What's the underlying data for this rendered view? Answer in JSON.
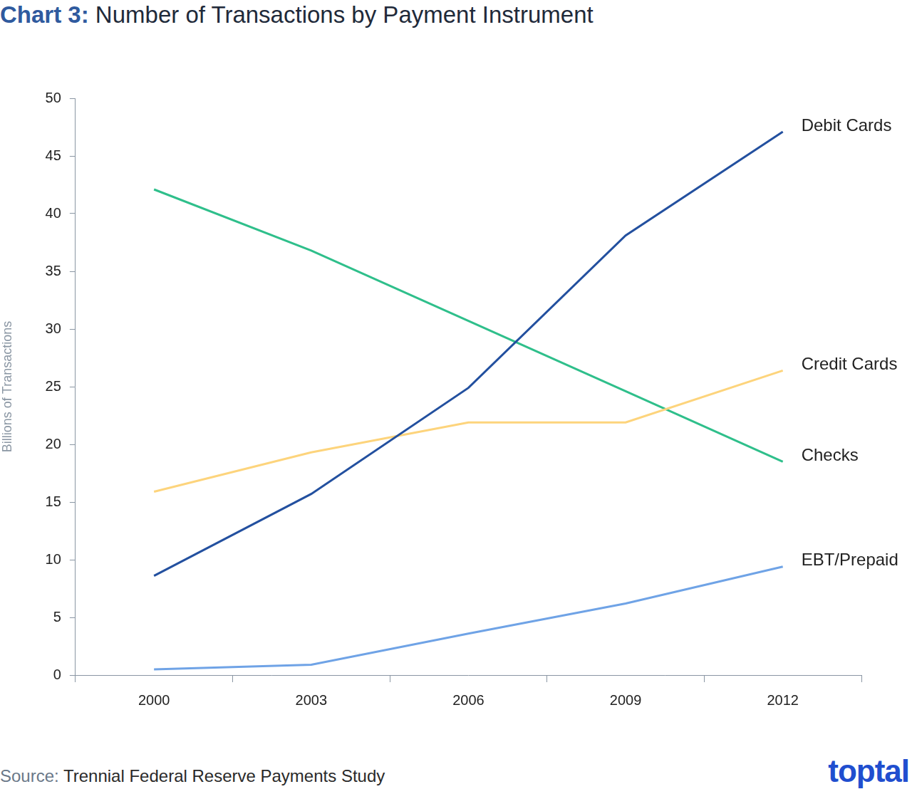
{
  "chart_data": {
    "type": "line",
    "title": "Chart 3: Number of Transactions by Payment Instrument",
    "y_label": "Billions of Transactions",
    "annotations": [
      "Source: Trennial Federal Reserve Payments Study",
      "toptal"
    ],
    "categories": [
      "2000",
      "2003",
      "2006",
      "2009",
      "2012"
    ],
    "series": [
      {
        "name": "Debit Cards",
        "color": "#23509f",
        "values": [
          8.6,
          15.7,
          24.9,
          38.1,
          47.1
        ]
      },
      {
        "name": "Credit Cards",
        "color": "#fdd47c",
        "values": [
          15.9,
          19.3,
          21.9,
          21.9,
          26.4
        ]
      },
      {
        "name": "Checks",
        "color": "#2fbf8b",
        "values": [
          42.1,
          36.8,
          30.7,
          24.6,
          18.5
        ]
      },
      {
        "name": "EBT/Prepaid",
        "color": "#6fa3e6",
        "values": [
          0.5,
          0.9,
          3.6,
          6.2,
          9.4
        ]
      }
    ],
    "ylim": [
      0,
      50
    ],
    "yticks": [
      0,
      5,
      10,
      15,
      20,
      25,
      30,
      35,
      40,
      45,
      50
    ],
    "grid": false
  }
}
